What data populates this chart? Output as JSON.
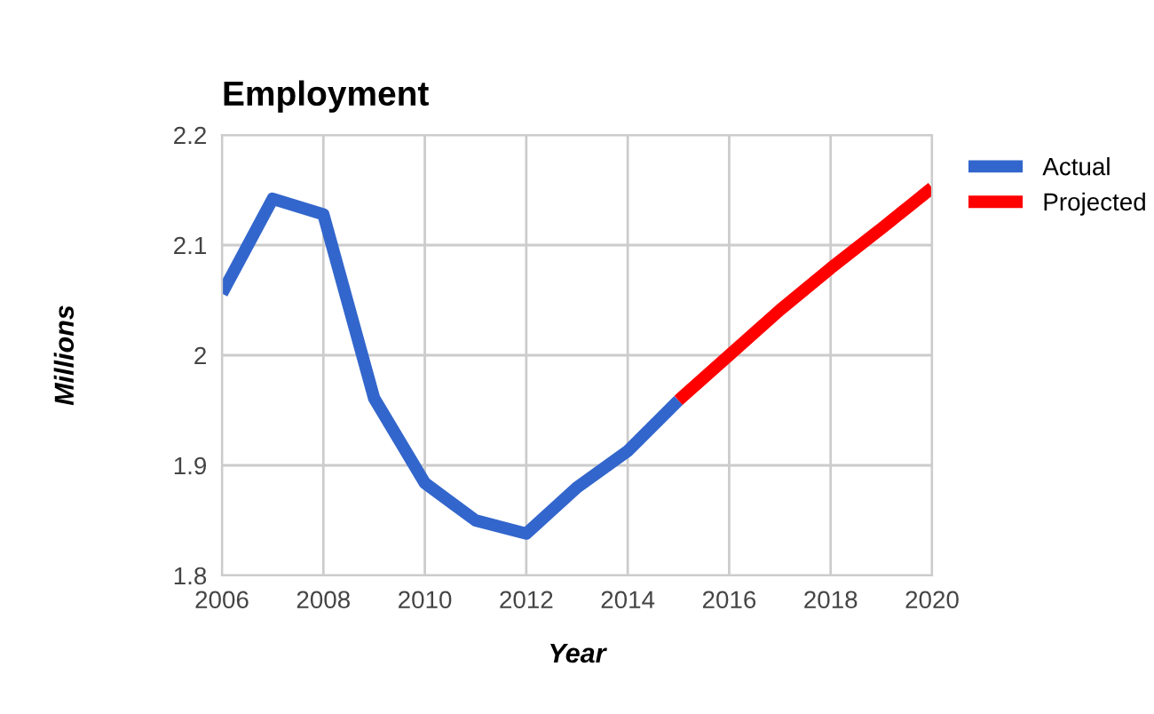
{
  "chart_data": {
    "type": "line",
    "title": "Employment",
    "xlabel": "Year",
    "ylabel": "Millions",
    "xlim": [
      2006,
      2020
    ],
    "xticks": [
      2006,
      2008,
      2010,
      2012,
      2014,
      2016,
      2018,
      2020
    ],
    "ylim": [
      1.8,
      2.2
    ],
    "yticks": [
      1.8,
      1.9,
      2,
      2.1,
      2.2
    ],
    "grid": true,
    "legend": "top right",
    "series": [
      {
        "name": "Actual",
        "color": "#3366cc",
        "x": [
          2006,
          2007,
          2008,
          2009,
          2010,
          2011,
          2012,
          2013,
          2014,
          2015
        ],
        "values": [
          2.056,
          2.142,
          2.128,
          1.961,
          1.884,
          1.85,
          1.838,
          1.88,
          1.913,
          1.959
        ]
      },
      {
        "name": "Projected",
        "color": "#ff0000",
        "x": [
          2015,
          2016,
          2017,
          2018,
          2019,
          2020
        ],
        "values": [
          1.959,
          2.0,
          2.041,
          2.079,
          2.115,
          2.152
        ]
      }
    ]
  }
}
